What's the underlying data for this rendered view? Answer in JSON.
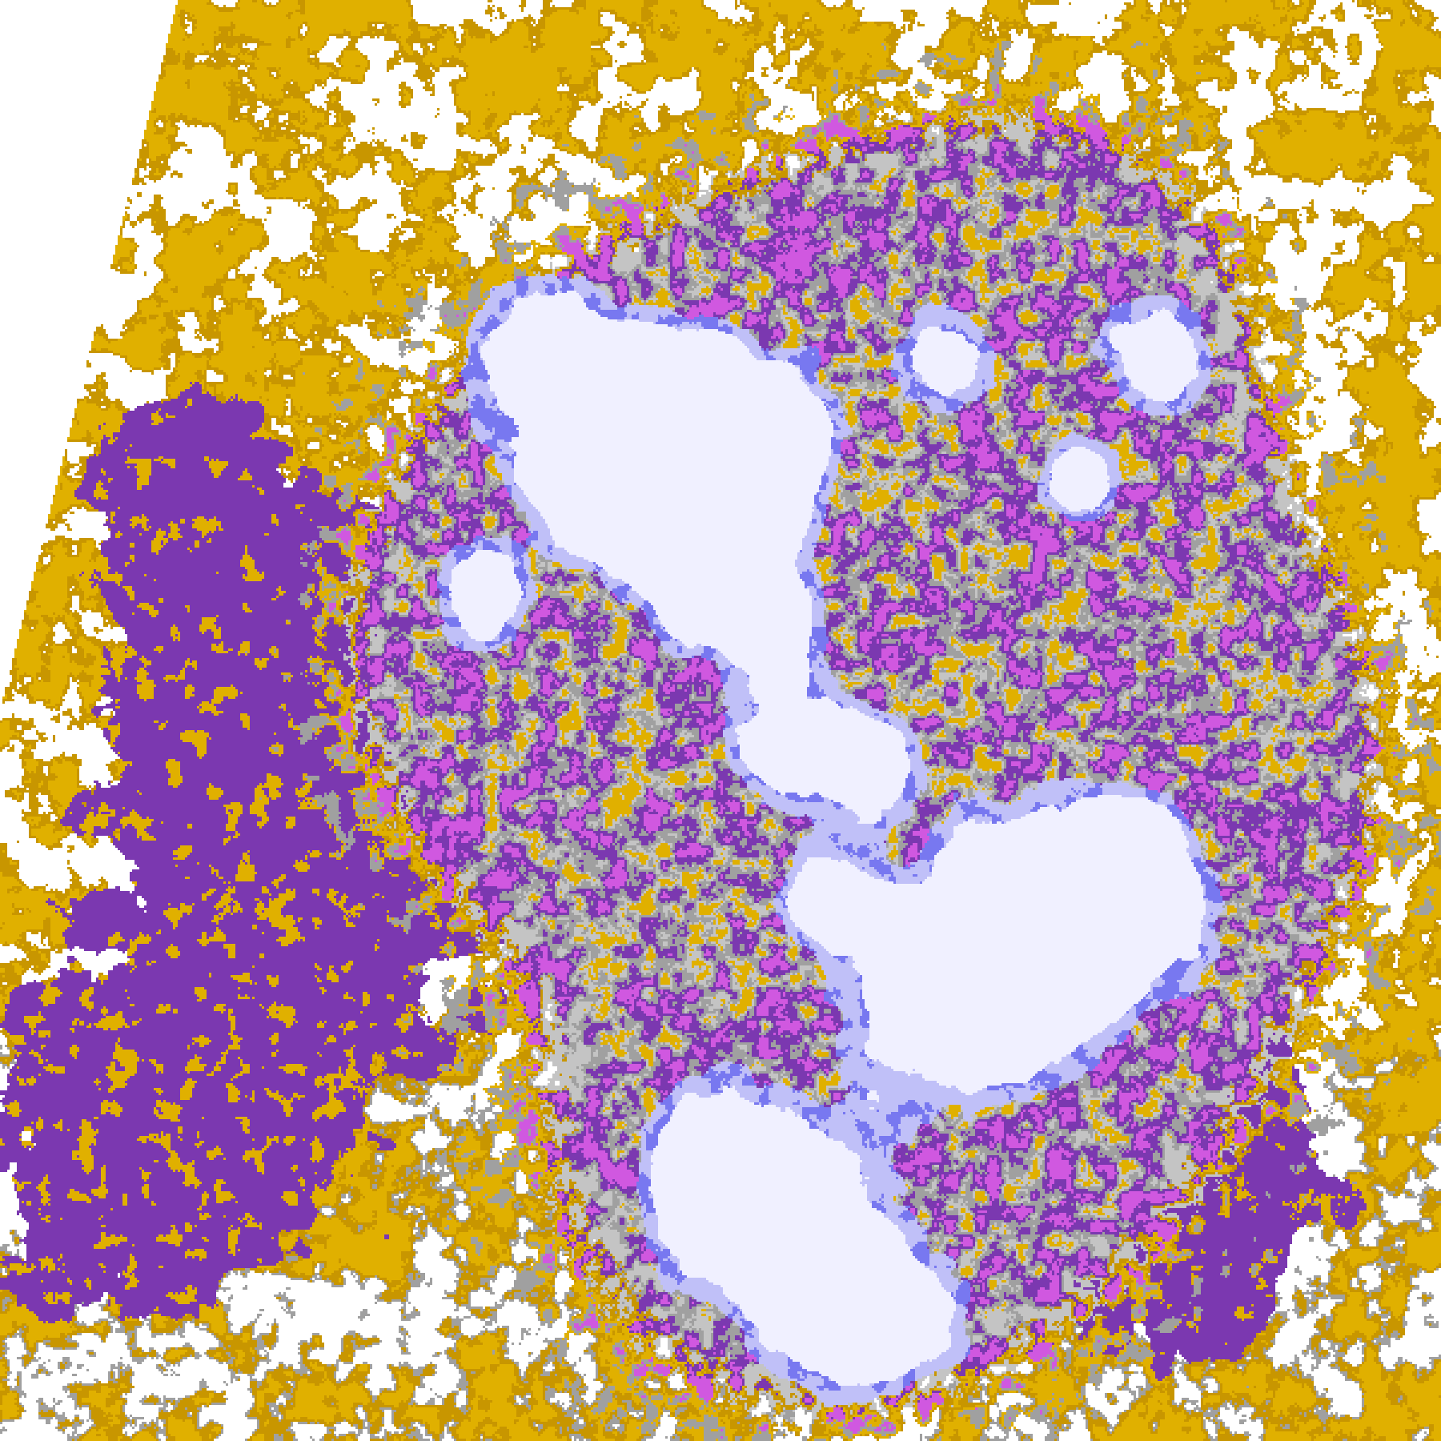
{
  "image": {
    "kind": "satellite cloud-type classification map",
    "palette": {
      "clear": "#ffffff",
      "gold": "#e0b000",
      "dark_gold": "#c89600",
      "purple": "#7b38b0",
      "magenta": "#d058e0",
      "lavender": "#f0f0ff",
      "periwinkle": "#7878f0",
      "light_blue": "#c0c0f8",
      "gray": "#a0a0a0",
      "light_gray": "#c4c4c4"
    }
  }
}
